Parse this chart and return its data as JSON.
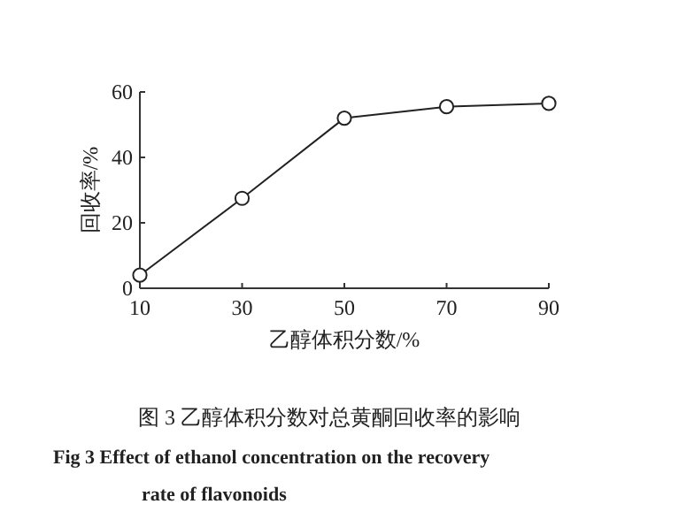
{
  "chart_data": {
    "type": "line",
    "title": "图 3  乙醇体积分数对总黄酮回收率的影响",
    "subtitle": "Fig 3   Effect of ethanol concentration on the recovery rate of flavonoids",
    "xlabel": "乙醇体积分数/%",
    "ylabel": "回收率/%",
    "x": [
      10,
      30,
      50,
      70,
      90
    ],
    "series": [
      {
        "color": "#222222",
        "values": [
          4,
          27.5,
          52,
          55.5,
          56.5
        ]
      }
    ],
    "xlim": [
      10,
      90
    ],
    "xticks": [
      10,
      30,
      50,
      70,
      90
    ],
    "ylim": [
      0,
      60
    ],
    "yticks": [
      0,
      20,
      40,
      60
    ],
    "marker": "circle",
    "line_style": "solid",
    "grid": false
  }
}
